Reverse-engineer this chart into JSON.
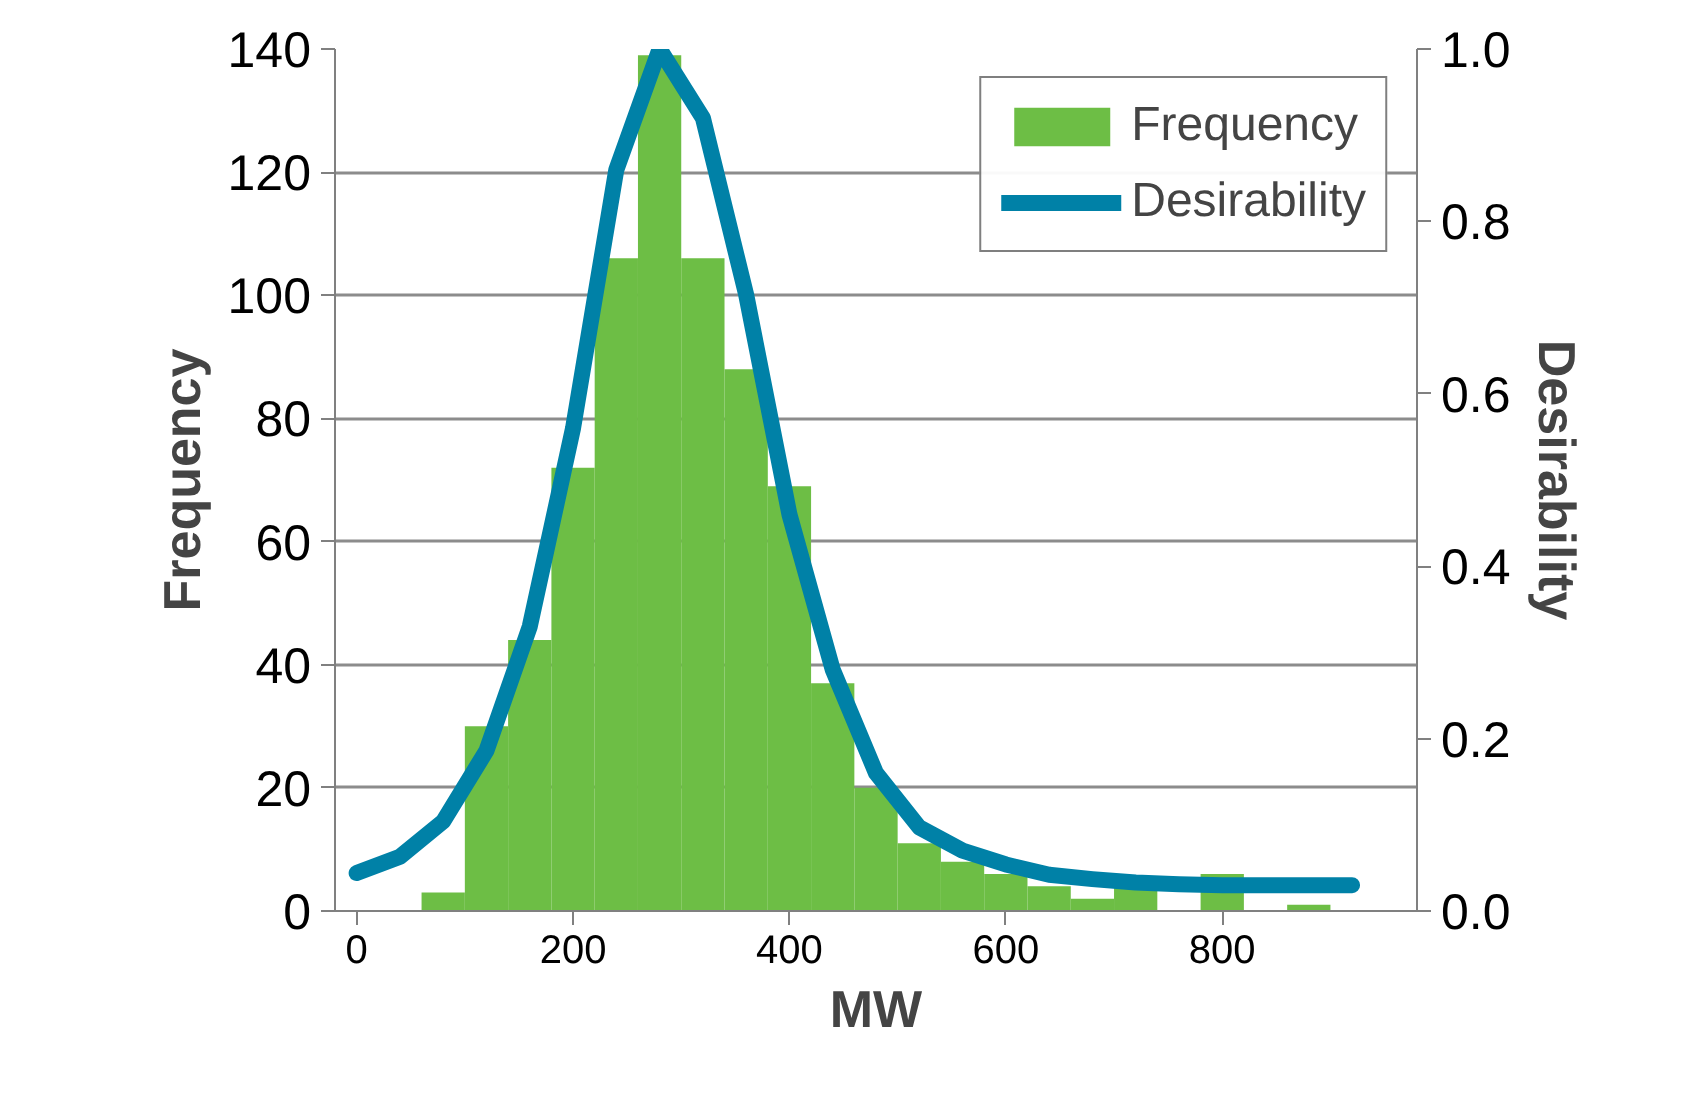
{
  "chart_data": {
    "type": "histogram",
    "xlabel": "MW",
    "ylabel": "Frequency",
    "y2label": "Desirability",
    "bins": [
      60,
      100,
      140,
      180,
      220,
      260,
      300,
      340,
      380,
      420,
      460,
      500,
      540,
      580,
      620,
      660,
      700,
      740,
      780,
      820,
      860,
      900
    ],
    "series": [
      {
        "name": "Frequency",
        "color": "#6dbe45",
        "values": [
          3,
          30,
          44,
          72,
          106,
          139,
          106,
          88,
          69,
          37,
          20,
          11,
          8,
          6,
          4,
          2,
          4,
          null,
          6,
          null,
          1
        ]
      },
      {
        "name": "Desirability",
        "type": "line",
        "axis": "y2",
        "color": "#0081a7",
        "x": [
          0,
          40,
          80,
          120,
          160,
          200,
          240,
          280,
          320,
          360,
          400,
          440,
          480,
          520,
          560,
          600,
          640,
          680,
          720,
          760,
          800,
          840,
          880,
          920
        ],
        "values": [
          0.044,
          0.063,
          0.104,
          0.186,
          0.33,
          0.56,
          0.86,
          1.0,
          0.92,
          0.715,
          0.46,
          0.28,
          0.16,
          0.097,
          0.07,
          0.054,
          0.042,
          0.037,
          0.033,
          0.031,
          0.03,
          0.03,
          0.03,
          0.03
        ]
      }
    ],
    "xlim": [
      -20,
      980
    ],
    "xticks": [
      0,
      200,
      400,
      600,
      800
    ],
    "ylim": [
      0,
      140
    ],
    "yticks": [
      0,
      20,
      40,
      60,
      80,
      100,
      120,
      140
    ],
    "y2lim": [
      0,
      1
    ],
    "y2ticks": [
      {
        "value": 0,
        "label": "0.0"
      },
      {
        "value": 0.2,
        "label": "0.2"
      },
      {
        "value": 0.4,
        "label": "0.4"
      },
      {
        "value": 0.6,
        "label": "0.6"
      },
      {
        "value": 0.8,
        "label": "0.8"
      },
      {
        "value": 1,
        "label": "1.0"
      }
    ],
    "grid": "y",
    "legend": "top right",
    "marker": "none"
  }
}
